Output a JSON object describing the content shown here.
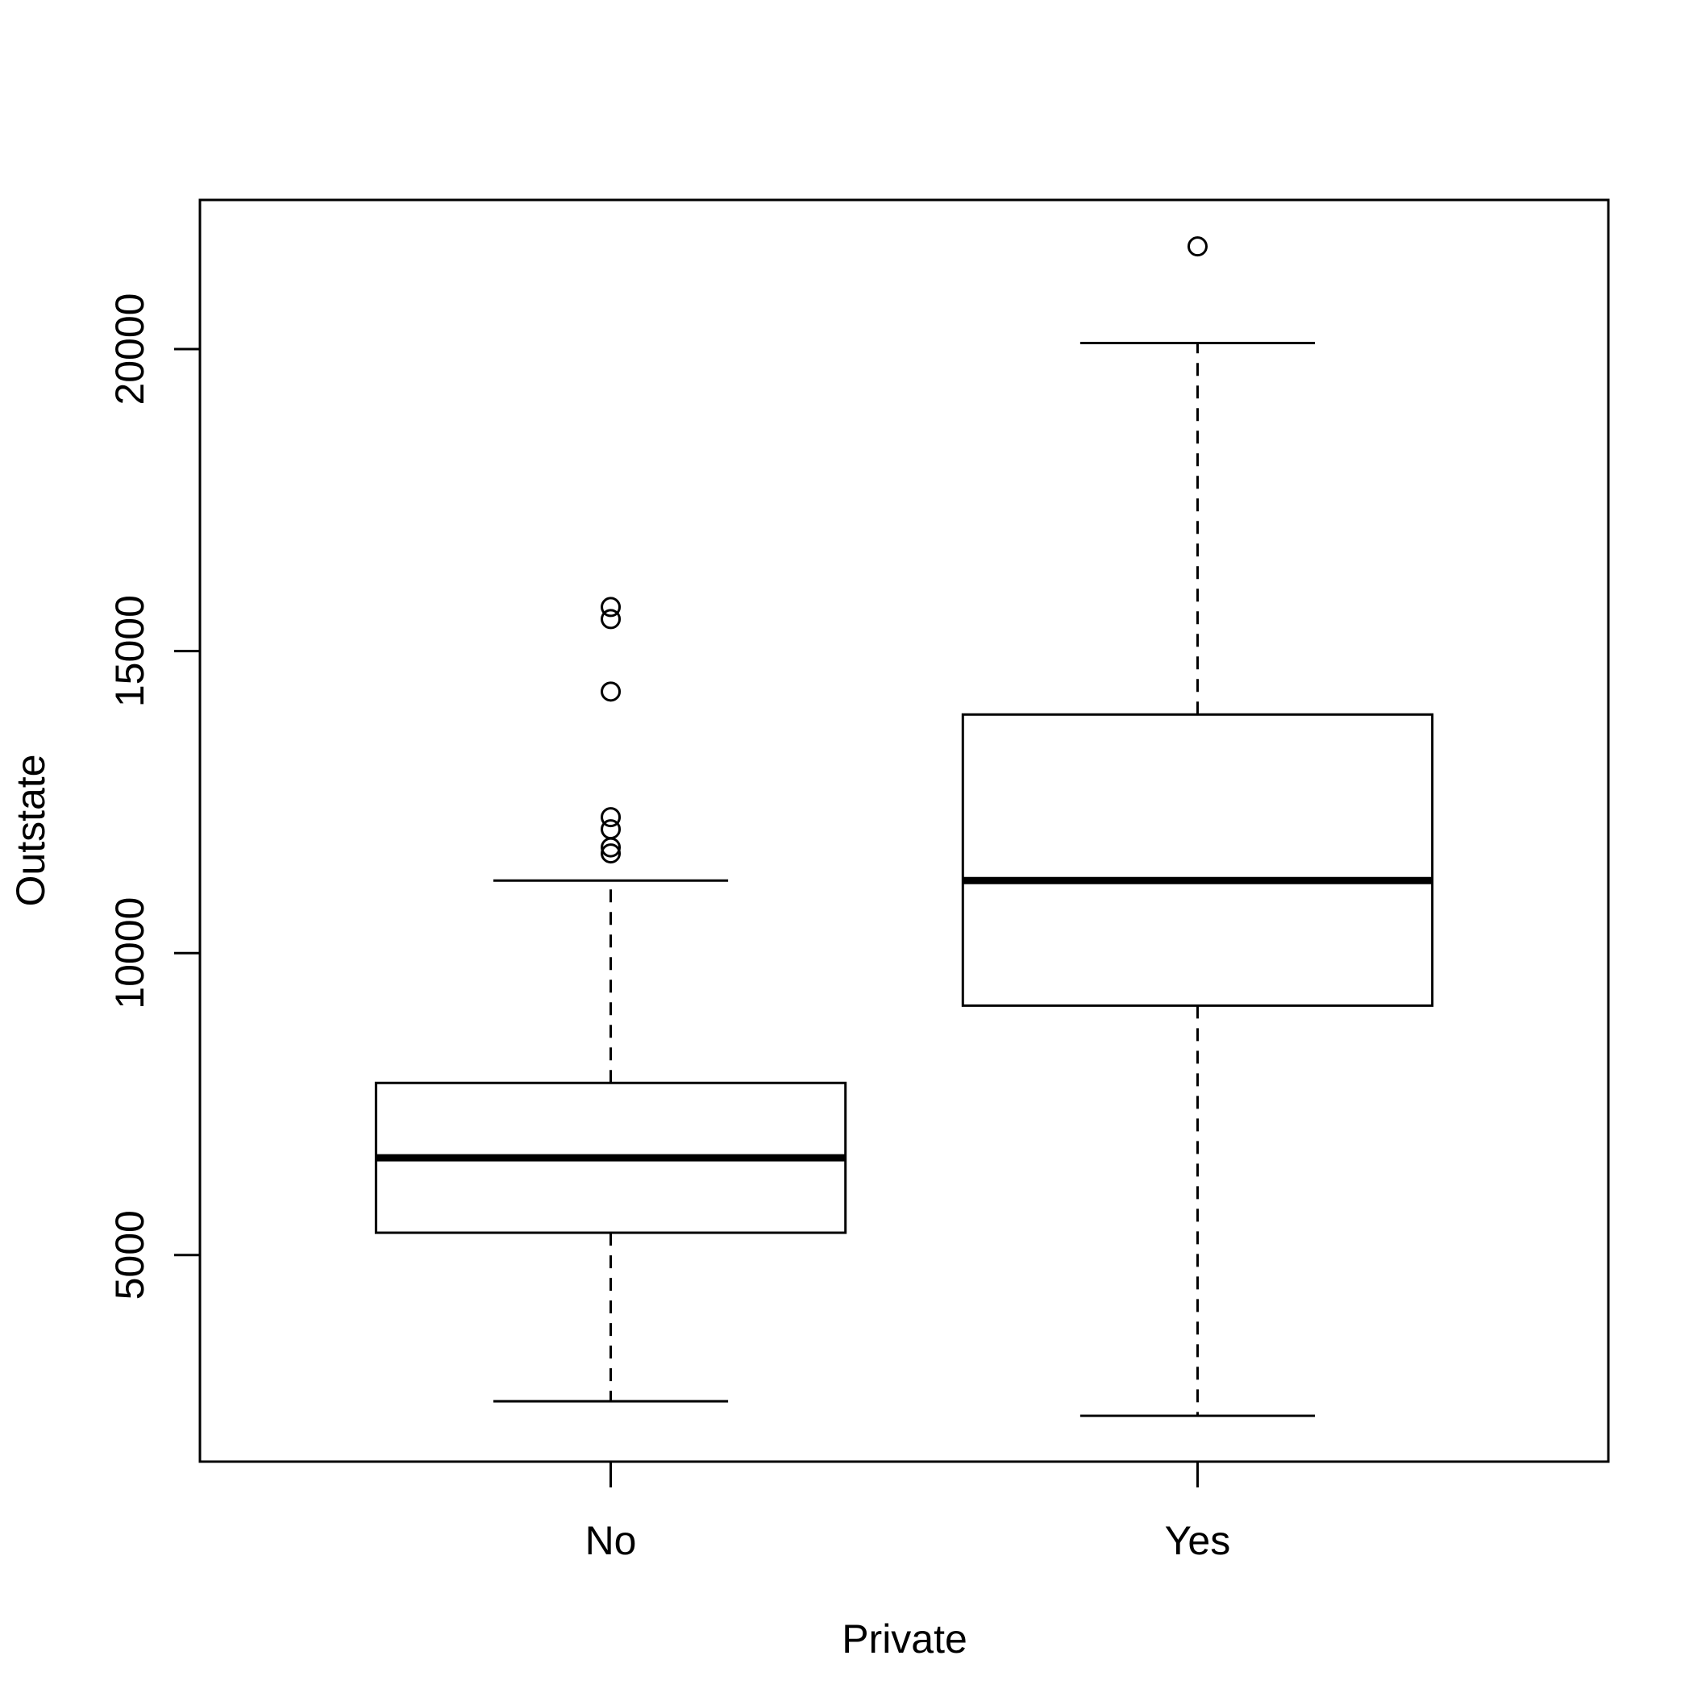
{
  "chart_data": {
    "type": "box",
    "title": "",
    "xlabel": "Private",
    "ylabel": "Outstate",
    "categories": [
      "No",
      "Yes"
    ],
    "boxes": [
      {
        "category": "No",
        "whisker_low": 2580,
        "q1": 5370,
        "median": 6610,
        "q3": 7850,
        "whisker_high": 11200,
        "outliers": [
          15730,
          15530,
          14330,
          12250,
          12050,
          11750,
          11650
        ]
      },
      {
        "category": "Yes",
        "whisker_low": 2340,
        "q1": 9130,
        "median": 11200,
        "q3": 13950,
        "whisker_high": 20100,
        "outliers": [
          21700
        ]
      }
    ],
    "y_ticks": [
      5000,
      10000,
      15000,
      20000
    ],
    "ylim": [
      1580,
      22470
    ],
    "grid": false,
    "legend": "none"
  }
}
